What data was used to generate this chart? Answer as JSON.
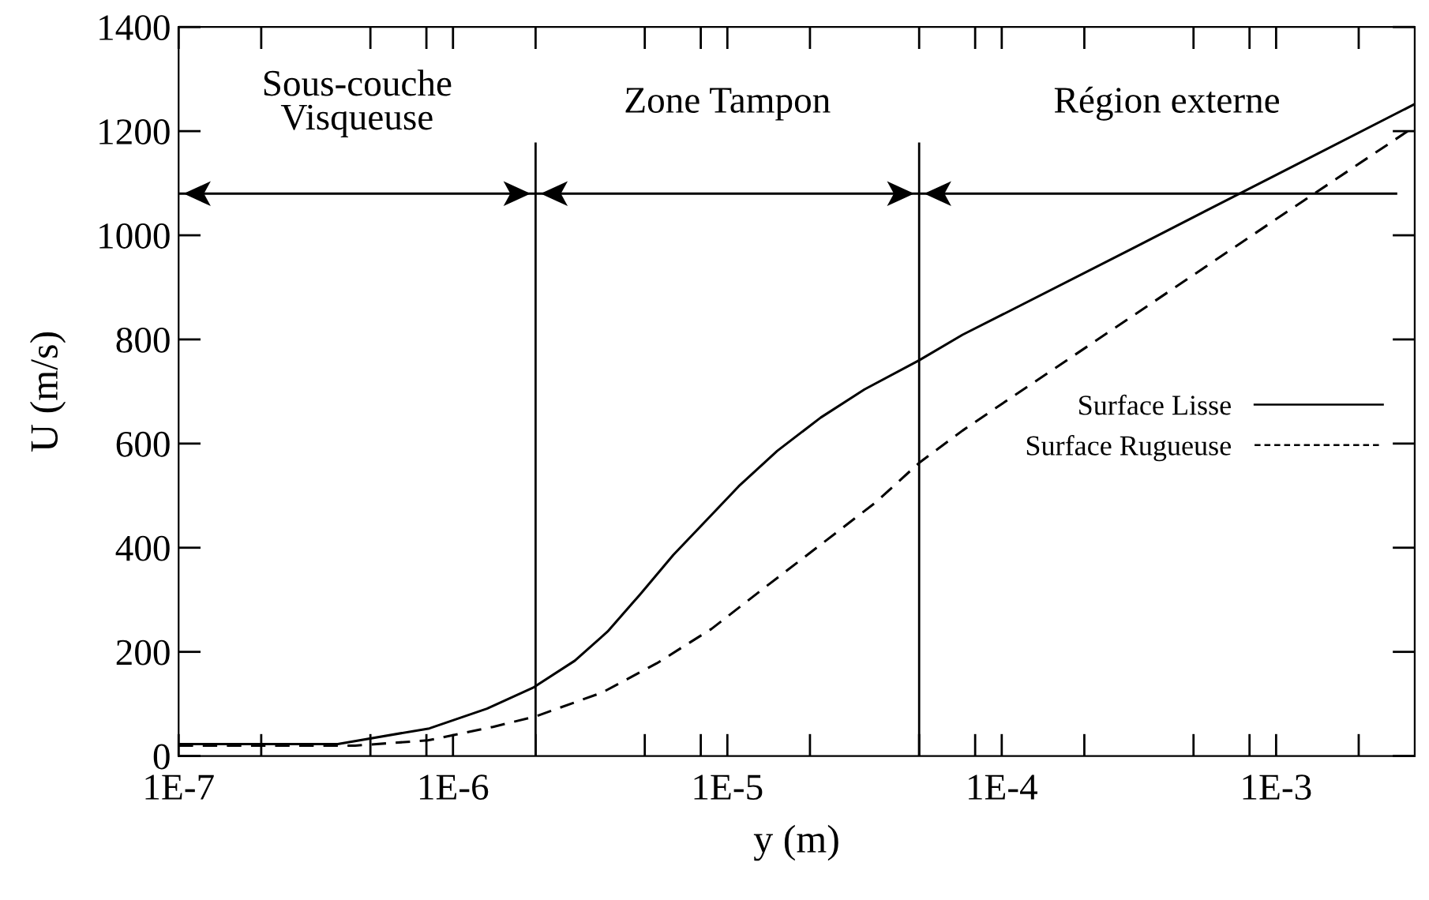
{
  "chart_data": {
    "type": "line",
    "xlabel": "y (m)",
    "ylabel": "U (m/s)",
    "log": "x",
    "xlim": [
      1e-07,
      0.0032
    ],
    "ylim": [
      0,
      1400
    ],
    "xticks": [
      {
        "value": 1e-07,
        "label": "1E-7"
      },
      {
        "value": 2e-07,
        "label": null
      },
      {
        "value": 5e-07,
        "label": null
      },
      {
        "value": 8e-07,
        "label": null
      },
      {
        "value": 1e-06,
        "label": "1E-6"
      },
      {
        "value": 2e-06,
        "label": null
      },
      {
        "value": 5e-06,
        "label": null
      },
      {
        "value": 8e-06,
        "label": null
      },
      {
        "value": 1e-05,
        "label": "1E-5"
      },
      {
        "value": 2e-05,
        "label": null
      },
      {
        "value": 5e-05,
        "label": null
      },
      {
        "value": 8e-05,
        "label": null
      },
      {
        "value": 0.0001,
        "label": "1E-4"
      },
      {
        "value": 0.0002,
        "label": null
      },
      {
        "value": 0.0005,
        "label": null
      },
      {
        "value": 0.0008,
        "label": null
      },
      {
        "value": 0.001,
        "label": "1E-3"
      },
      {
        "value": 0.002,
        "label": null
      }
    ],
    "yticks": [
      0,
      200,
      400,
      600,
      800,
      1000,
      1200,
      1400
    ],
    "grid": false,
    "legend": "right",
    "series": [
      {
        "name": "Surface Lisse",
        "color": "#000000",
        "line_style": "solid",
        "x": [
          1e-07,
          3.8e-07,
          8.2e-07,
          1.33e-06,
          1.97e-06,
          2.78e-06,
          3.66e-06,
          4.8e-06,
          6.35e-06,
          8.36e-06,
          1.1e-05,
          1.52e-05,
          2.19e-05,
          3.16e-05,
          5e-05,
          7.2e-05,
          0.0001,
          0.0003,
          0.001,
          0.0032
        ],
        "values": [
          23,
          23,
          53,
          91,
          132,
          183,
          239,
          310,
          386,
          452,
          518,
          586,
          650,
          704,
          760,
          809,
          847,
          975,
          1116,
          1252
        ]
      },
      {
        "name": "Surface Rugueuse",
        "color": "#000000",
        "line_style": "dashed",
        "x": [
          1e-07,
          4.4e-07,
          8.1e-07,
          1.4e-06,
          2e-06,
          3.5e-06,
          5.53e-06,
          8.75e-06,
          1.38e-05,
          2.19e-05,
          3.47e-05,
          5e-05,
          7.2e-05,
          0.0001,
          0.0003,
          0.001,
          0.0032
        ],
        "values": [
          20,
          20,
          30,
          56,
          76,
          122,
          178,
          244,
          325,
          406,
          487,
          563,
          625,
          676,
          845,
          1031,
          1209
        ]
      }
    ],
    "ref_lines": [
      {
        "axis": "x",
        "value": 2e-06,
        "color": "#000000"
      },
      {
        "axis": "x",
        "value": 5e-05,
        "color": "#000000"
      },
      {
        "axis": "y",
        "value": 1080,
        "color": "#000000"
      }
    ],
    "annotations": [
      "Sous-couche\nVisqueuse",
      "Zone Tampon",
      "Région externe"
    ]
  }
}
